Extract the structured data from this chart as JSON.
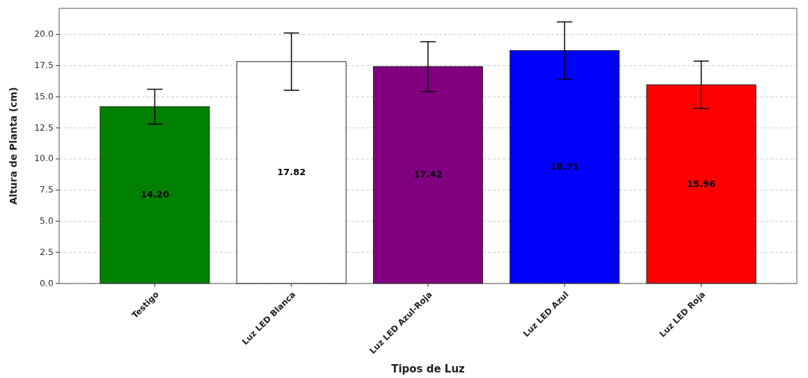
{
  "chart_data": {
    "type": "bar",
    "xlabel": "Tipos de Luz",
    "ylabel": "Altura de Planta (cm)",
    "categories": [
      "Testigo",
      "Luz LED Blanca",
      "Luz LED Azul-Roja",
      "Luz LED Azul",
      "Luz LED Roja"
    ],
    "values": [
      14.2,
      17.82,
      17.42,
      18.71,
      15.96
    ],
    "colors": [
      "#008000",
      "#ffffff",
      "#800080",
      "#0000ff",
      "#ff0000"
    ],
    "errors": [
      1.4,
      2.3,
      2.0,
      2.3,
      1.9
    ],
    "value_labels": [
      "14.20",
      "17.82",
      "17.42",
      "18.71",
      "15.96"
    ],
    "ylim": [
      0,
      22.1
    ],
    "yticks": [
      {
        "value": 0,
        "label": "0.0"
      },
      {
        "value": 2.5,
        "label": "2.5"
      },
      {
        "value": 5,
        "label": "5.0"
      },
      {
        "value": 7.5,
        "label": "7.5"
      },
      {
        "value": 10,
        "label": "10.0"
      },
      {
        "value": 12.5,
        "label": "12.5"
      },
      {
        "value": 15,
        "label": "15.0"
      },
      {
        "value": 17.5,
        "label": "17.5"
      },
      {
        "value": 20,
        "label": "20.0"
      }
    ],
    "grid": "y"
  }
}
